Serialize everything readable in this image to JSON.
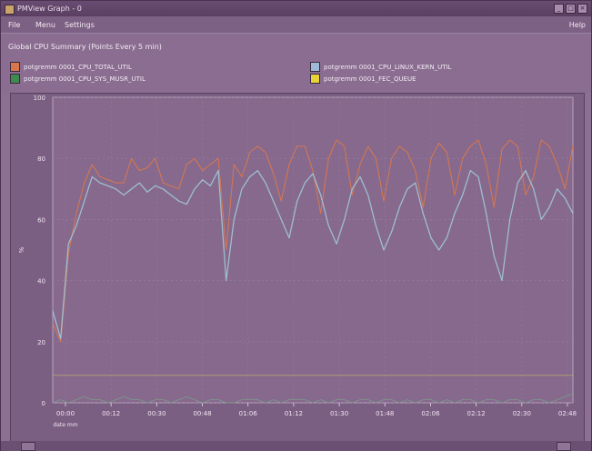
{
  "window": {
    "title": "PMView Graph - 0",
    "buttons": [
      "_",
      "□",
      "×"
    ]
  },
  "menu": {
    "items": [
      "File",
      "Menu",
      "Settings"
    ],
    "help": "Help"
  },
  "header": {
    "title": "Global CPU Summary (Points Every 5 min)",
    "legend": [
      {
        "label": "potgremm 0001_CPU_TOTAL_UTIL",
        "color": "#d8774e",
        "swatch": "#d8774e"
      },
      {
        "label": "potgremm 0001_CPU_LINUX_KERN_UTIL",
        "color": "#9fc3d3",
        "swatch": "#9fb9d8"
      },
      {
        "label": "potgremm 0001_CPU_SYS_MUSR_UTIL",
        "color": "#7a9a8a",
        "swatch": "#3f8a4e"
      },
      {
        "label": "potgremm 0001_FEC_QUEUE",
        "color": "#d2c85a",
        "swatch": "#e8d23a"
      }
    ]
  },
  "chart_data": {
    "type": "line",
    "ylim": [
      0,
      100
    ],
    "yticks": [
      0,
      20,
      40,
      60,
      80,
      100
    ],
    "ylabel": "%",
    "xtick_labels": [
      "00:00",
      "00:12",
      "00:30",
      "00:48",
      "01:06",
      "01:12",
      "01:30",
      "01:48",
      "02:06",
      "02:12",
      "02:30",
      "02:48"
    ],
    "date_label": "date mm",
    "x": [
      0,
      1,
      2,
      3,
      4,
      5,
      6,
      7,
      8,
      9,
      10,
      11,
      12,
      13,
      14,
      15,
      16,
      17,
      18,
      19,
      20,
      21,
      22,
      23,
      24,
      25,
      26,
      27,
      28,
      29,
      30,
      31,
      32,
      33,
      34,
      35,
      36,
      37,
      38,
      39,
      40,
      41,
      42,
      43,
      44,
      45,
      46,
      47,
      48,
      49,
      50,
      51,
      52,
      53,
      54,
      55,
      56,
      57,
      58,
      59,
      60,
      61,
      62,
      63,
      64,
      65,
      66
    ],
    "series": [
      {
        "name": "potgremm 0001_CPU_TOTAL_UTIL",
        "values": [
          26,
          20,
          49,
          62,
          72,
          78,
          74,
          73,
          72,
          72,
          80,
          76,
          77,
          80,
          72,
          71,
          70,
          78,
          80,
          76,
          78,
          80,
          50,
          78,
          74,
          82,
          84,
          82,
          75,
          66,
          78,
          84,
          84,
          76,
          62,
          80,
          86,
          84,
          68,
          78,
          84,
          80,
          66,
          80,
          84,
          82,
          76,
          64,
          80,
          85,
          82,
          68,
          80,
          84,
          86,
          78,
          64,
          83,
          86,
          84,
          68,
          74,
          86,
          84,
          78,
          70,
          84
        ]
      },
      {
        "name": "potgremm 0001_CPU_LINUX_KERN_UTIL",
        "values": [
          30,
          21,
          52,
          58,
          66,
          74,
          72,
          71,
          70,
          68,
          70,
          72,
          69,
          71,
          70,
          68,
          66,
          65,
          70,
          73,
          71,
          76,
          40,
          60,
          70,
          74,
          76,
          72,
          66,
          60,
          54,
          66,
          72,
          75,
          68,
          58,
          52,
          60,
          70,
          74,
          68,
          58,
          50,
          56,
          64,
          70,
          72,
          62,
          54,
          50,
          54,
          62,
          68,
          76,
          74,
          62,
          48,
          40,
          60,
          72,
          76,
          70,
          60,
          64,
          70,
          67,
          62
        ]
      },
      {
        "name": "potgremm 0001_CPU_SYS_MUSR_UTIL",
        "values": [
          0,
          1,
          0,
          1,
          2,
          1,
          1,
          0,
          1,
          2,
          1,
          1,
          0,
          1,
          1,
          0,
          1,
          2,
          1,
          0,
          1,
          1,
          0,
          0,
          1,
          1,
          1,
          0,
          1,
          0,
          1,
          1,
          1,
          0,
          1,
          0,
          1,
          1,
          0,
          1,
          1,
          0,
          1,
          1,
          0,
          1,
          0,
          1,
          1,
          0,
          1,
          0,
          1,
          1,
          0,
          1,
          1,
          0,
          1,
          1,
          0,
          1,
          1,
          0,
          1,
          2,
          3
        ]
      },
      {
        "name": "potgremm 0001_FEC_QUEUE",
        "values": [
          9,
          9,
          9,
          9,
          9,
          9,
          9,
          9,
          9,
          9,
          9,
          9,
          9,
          9,
          9,
          9,
          9,
          9,
          9,
          9,
          9,
          9,
          9,
          9,
          9,
          9,
          9,
          9,
          9,
          9,
          9,
          9,
          9,
          9,
          9,
          9,
          9,
          9,
          9,
          9,
          9,
          9,
          9,
          9,
          9,
          9,
          9,
          9,
          9,
          9,
          9,
          9,
          9,
          9,
          9,
          9,
          9,
          9,
          9,
          9,
          9,
          9,
          9,
          9,
          9,
          9,
          9
        ]
      }
    ],
    "grid": true,
    "legend_position": "top"
  }
}
